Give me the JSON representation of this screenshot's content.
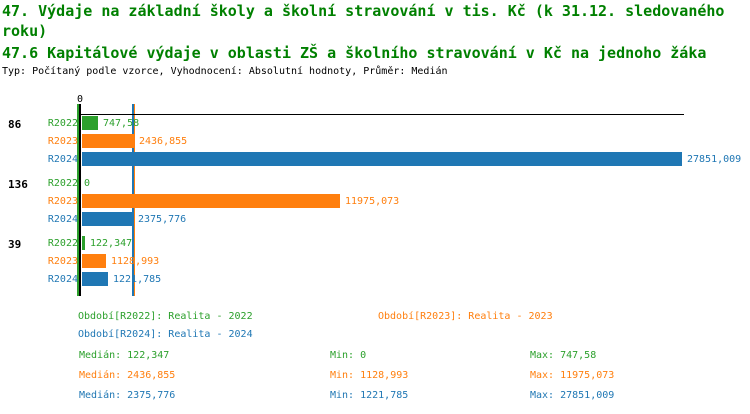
{
  "header": {
    "title_line1": "47. Výdaje na základní školy a školní stravování v tis. Kč (k 31.12. sledovaného",
    "title_line2": "roku)",
    "subtitle": "47.6 Kapitálové výdaje v oblasti ZŠ a školního stravování v Kč na jednoho žáka",
    "meta": "Typ: Počítaný podle vzorce, Vyhodnocení: Absolutní hodnoty, Průměr: Medián"
  },
  "colors": {
    "title_green": "#008000",
    "r2022_green": "#2CA02C",
    "r2023_orange": "#FF7F0E",
    "r2024_blue": "#1F77B4",
    "axis_black": "#000000"
  },
  "chart_data": {
    "type": "bar",
    "orientation": "horizontal",
    "grid": false,
    "title": "47. Výdaje na základní školy a školní stravování v tis. Kč (k 31.12. sledovaného roku)",
    "subtitle": "47.6 Kapitálové výdaje v oblasti ZŠ a školního stravování v Kč na jednoho žáka",
    "note": "Typ: Počítaný podle vzorce, Vyhodnocení: Absolutní hodnoty, Průměr: Medián",
    "x_axis": {
      "tick_labels": [
        "0"
      ],
      "min": 0,
      "max": 27851.009
    },
    "categories": [
      "86",
      "136",
      "39"
    ],
    "series": [
      {
        "name": "R2022",
        "legend": "Období[R2022]: Realita - 2022",
        "color": "#2CA02C",
        "values": [
          747.58,
          0,
          122.347
        ],
        "value_labels": [
          "747,58",
          "0",
          "122,347"
        ],
        "median": 122.347,
        "median_label": "Medián: 122,347",
        "min_label": "Min: 0",
        "max_label": "Max: 747,58"
      },
      {
        "name": "R2023",
        "legend": "Období[R2023]: Realita - 2023",
        "color": "#FF7F0E",
        "values": [
          2436.855,
          11975.073,
          1128.993
        ],
        "value_labels": [
          "2436,855",
          "11975,073",
          "1128,993"
        ],
        "median": 2436.855,
        "median_label": "Medián: 2436,855",
        "min_label": "Min: 1128,993",
        "max_label": "Max: 11975,073"
      },
      {
        "name": "R2024",
        "legend": "Období[R2024]: Realita - 2024",
        "color": "#1F77B4",
        "values": [
          27851.009,
          2375.776,
          1221.785
        ],
        "value_labels": [
          "27851,009",
          "2375,776",
          "1221,785"
        ],
        "median": 2375.776,
        "median_label": "Medián: 2375,776",
        "min_label": "Min: 1221,785",
        "max_label": "Max: 27851,009"
      }
    ],
    "legend_position": "bottom"
  }
}
